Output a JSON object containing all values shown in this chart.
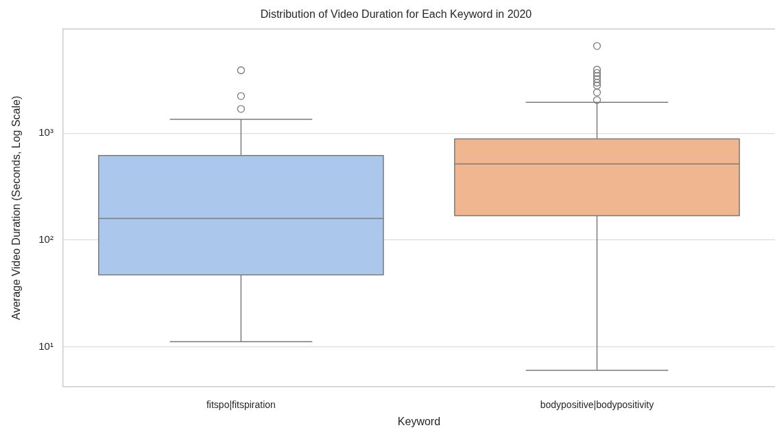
{
  "chart_data": {
    "type": "box",
    "title": "Distribution of Video Duration for Each Keyword in 2020",
    "xlabel": "Keyword",
    "ylabel": "Average Video Duration (Seconds, Log Scale)",
    "categories": [
      "fitspo|fitspiration",
      "bodypositive|bodypositivity"
    ],
    "colors": [
      "#abc8ec",
      "#f0b690"
    ],
    "boxes": [
      {
        "low": 11.1,
        "q1": 47,
        "median": 159,
        "q3": 618,
        "high": 1350,
        "outliers": [
          1690,
          2230,
          3890
        ]
      },
      {
        "low": 6.0,
        "q1": 169,
        "median": 516,
        "q3": 887,
        "high": 1950,
        "outliers": [
          2050,
          2410,
          2800,
          2980,
          3210,
          3440,
          3670,
          3950,
          6570
        ]
      }
    ],
    "log": true,
    "ylim": [
      4.2,
      9500
    ],
    "yticks": [
      {
        "value": 10,
        "label": "10¹"
      },
      {
        "value": 100,
        "label": "10²"
      },
      {
        "value": 1000,
        "label": "10³"
      }
    ],
    "grid": "y"
  }
}
